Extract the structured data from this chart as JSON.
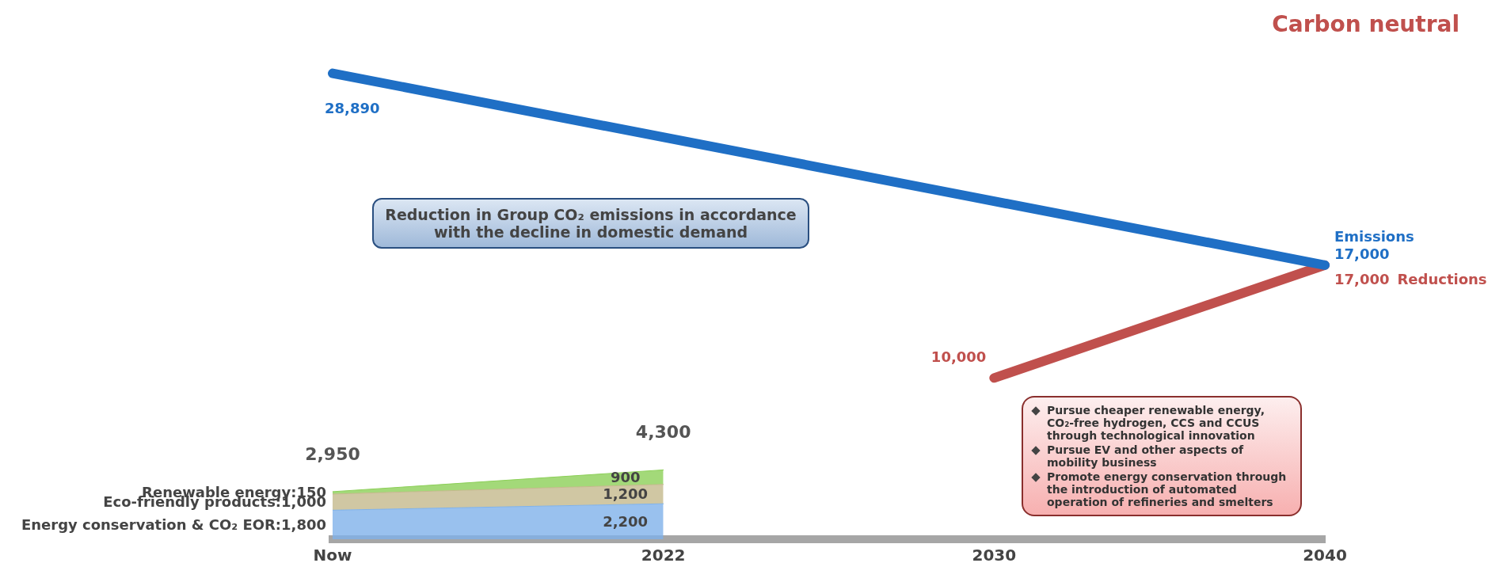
{
  "chart_data": {
    "type": "area",
    "stacked": true,
    "legend": false,
    "grid": false,
    "tick_labels": "x",
    "marker": "none",
    "categories": [
      "Now",
      "2022",
      "2030",
      "2040"
    ],
    "series": [
      {
        "name": "Energy conservation & CO₂ EOR:",
        "color": "#7fb2ea",
        "values": [
          1800,
          2200,
          null,
          null
        ],
        "value_labels": [
          "1,800",
          "2,200",
          null,
          null
        ]
      },
      {
        "name": "Eco-friendly products:",
        "color": "#c4b98c",
        "values": [
          1000,
          1200,
          null,
          null
        ],
        "value_labels": [
          "1,000",
          "1,200",
          null,
          null
        ]
      },
      {
        "name": "Renewable energy:",
        "color": "#8ccf58",
        "values": [
          150,
          900,
          null,
          null
        ],
        "value_labels": [
          "150",
          "900",
          null,
          null
        ]
      },
      {
        "name": "Emissions",
        "type": "line",
        "color": "#1f6fc5",
        "values": [
          28890,
          null,
          null,
          17000
        ],
        "value_labels": [
          "28,890",
          null,
          null,
          "17,000"
        ]
      },
      {
        "name": "Reductions",
        "type": "line",
        "color": "#c0504d",
        "values": [
          null,
          null,
          10000,
          17000
        ],
        "value_labels": [
          null,
          null,
          "10,000",
          "17,000"
        ]
      }
    ],
    "totals": [
      "2,950",
      "4,300",
      null,
      null
    ],
    "annotations": [
      "Carbon neutral",
      "Reduction in Group CO₂ emissions in accordance with the decline in domestic demand",
      "Pursue cheaper renewable energy, CO₂-free hydrogen, CCS and CCUS through technological innovation",
      "Pursue EV and other aspects of mobility business",
      "Promote energy conservation through the introduction of automated operation of refineries and smelters"
    ]
  }
}
